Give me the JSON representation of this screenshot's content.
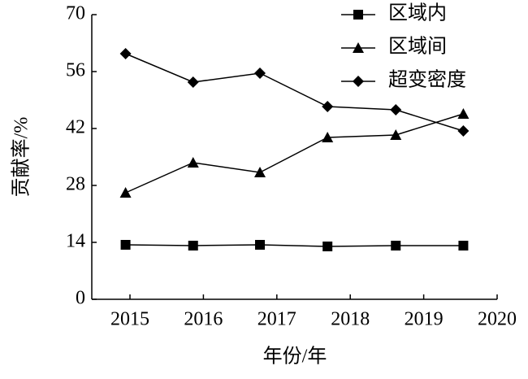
{
  "chart_data": {
    "type": "line",
    "x_label": "年份/年",
    "y_label": "贡献率/%",
    "x": [
      2014.94,
      2015.86,
      2016.77,
      2017.69,
      2018.62,
      2019.54
    ],
    "xlim": [
      2014.48,
      2020
    ],
    "xticks": [
      2015,
      2016,
      2017,
      2018,
      2019,
      2020
    ],
    "ylim": [
      0,
      70
    ],
    "yticks": [
      0,
      14,
      28,
      42,
      56,
      70
    ],
    "legend": "upper right",
    "series": [
      {
        "name": "区域内",
        "color": "#000000",
        "marker": "square",
        "values": [
          13.4,
          13.2,
          13.4,
          13.0,
          13.2,
          13.2
        ]
      },
      {
        "name": "区域间",
        "color": "#000000",
        "marker": "triangle",
        "values": [
          26.2,
          33.6,
          31.2,
          39.8,
          40.4,
          45.6
        ]
      },
      {
        "name": "超变密度",
        "color": "#000000",
        "marker": "diamond",
        "values": [
          60.4,
          53.4,
          55.6,
          47.4,
          46.6,
          41.4
        ]
      }
    ]
  }
}
